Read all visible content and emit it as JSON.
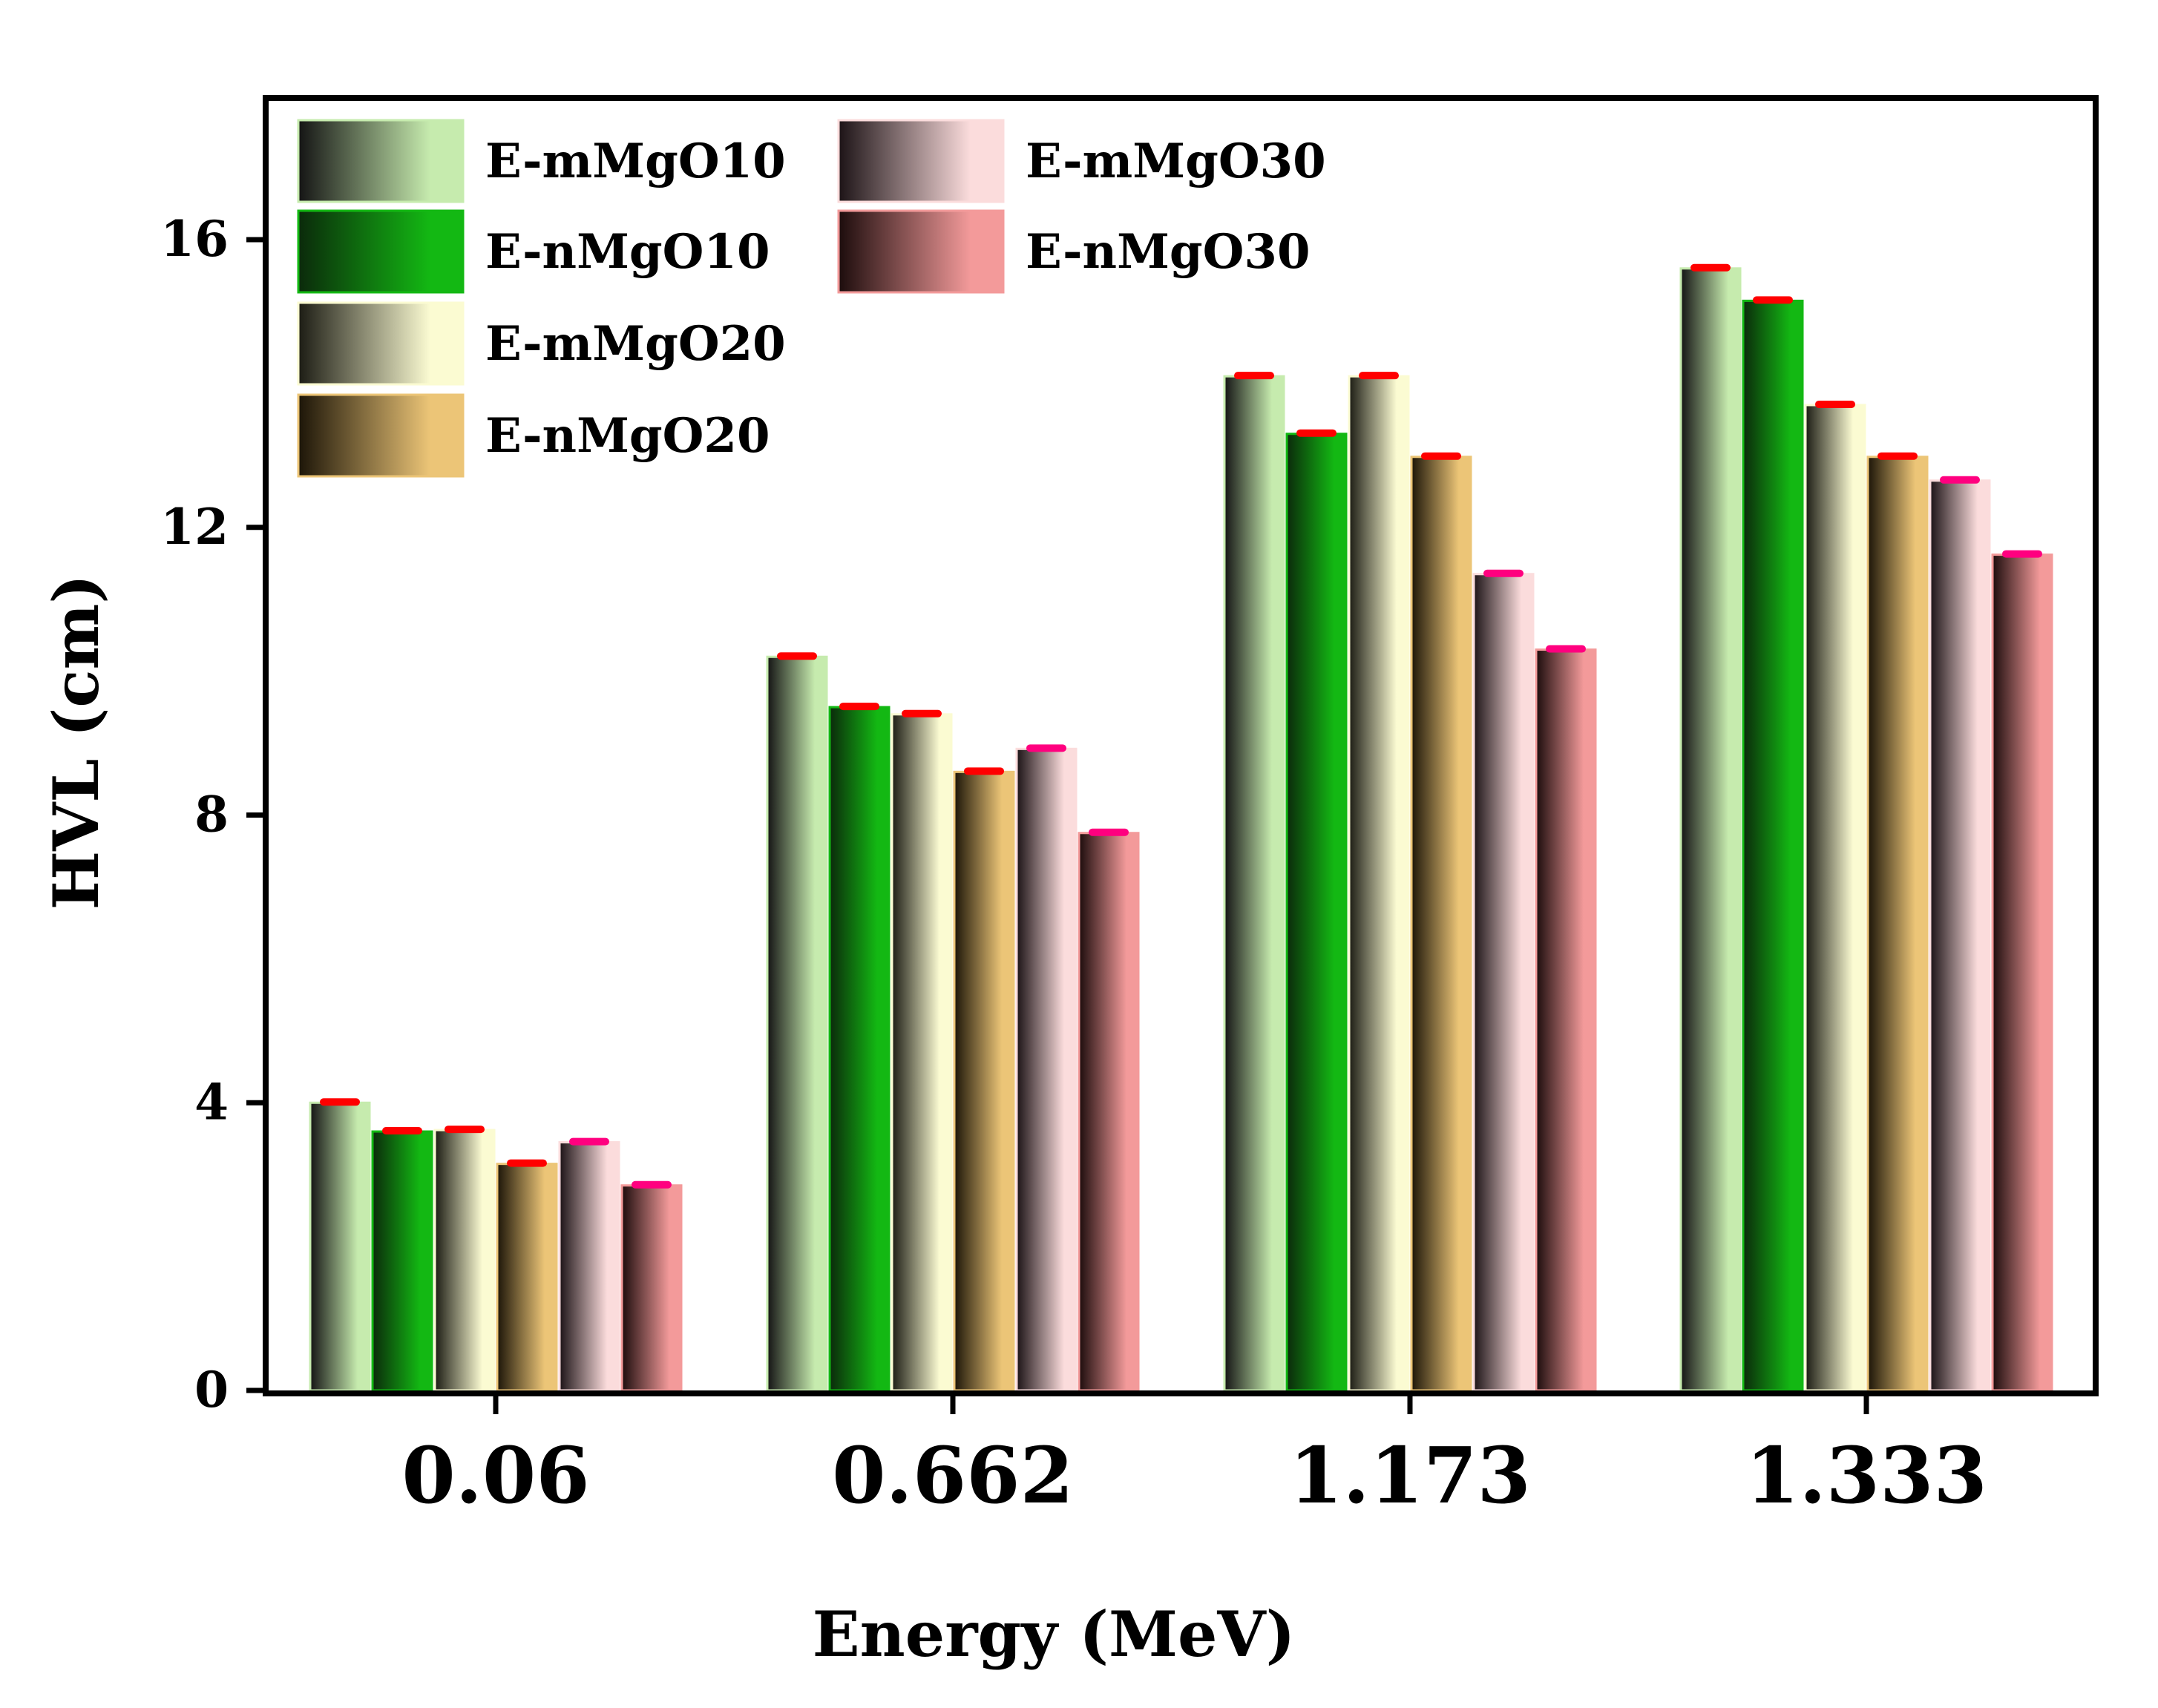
{
  "chart_data": {
    "type": "bar",
    "title": "",
    "xlabel": "Energy (MeV)",
    "ylabel": "HVL (cm)",
    "ylim": [
      0,
      18
    ],
    "yticks": [
      0,
      4,
      8,
      12,
      16
    ],
    "grid": false,
    "legend_position": "top-left",
    "categories": [
      "0.06",
      "0.662",
      "1.173",
      "1.333"
    ],
    "series": [
      {
        "name": "E-mMgO10",
        "values": [
          4.0,
          10.2,
          14.1,
          15.6
        ],
        "color_dark": "#141414",
        "color_light": "#c6ebae",
        "error_color": "#ff0000"
      },
      {
        "name": "E-nMgO10",
        "values": [
          3.6,
          9.5,
          13.3,
          15.15
        ],
        "color_dark": "#0b2a0b",
        "color_light": "#13b813",
        "error_color": "#ff0000"
      },
      {
        "name": "E-mMgO20",
        "values": [
          3.62,
          9.4,
          14.1,
          13.7
        ],
        "color_dark": "#1c1c14",
        "color_light": "#fbfbd2",
        "error_color": "#ff0000"
      },
      {
        "name": "E-nMgO20",
        "values": [
          3.15,
          8.6,
          12.98,
          12.98
        ],
        "color_dark": "#1c1508",
        "color_light": "#ecc577",
        "error_color": "#ff0000"
      },
      {
        "name": "E-mMgO30",
        "values": [
          3.45,
          8.92,
          11.35,
          12.65
        ],
        "color_dark": "#1c1316",
        "color_light": "#fbdcdc",
        "error_color": "#ff007f"
      },
      {
        "name": "E-nMgO30",
        "values": [
          2.85,
          7.75,
          10.3,
          11.62
        ],
        "color_dark": "#1c0c0c",
        "color_light": "#f39a9a",
        "error_color": "#ff007f"
      }
    ]
  }
}
